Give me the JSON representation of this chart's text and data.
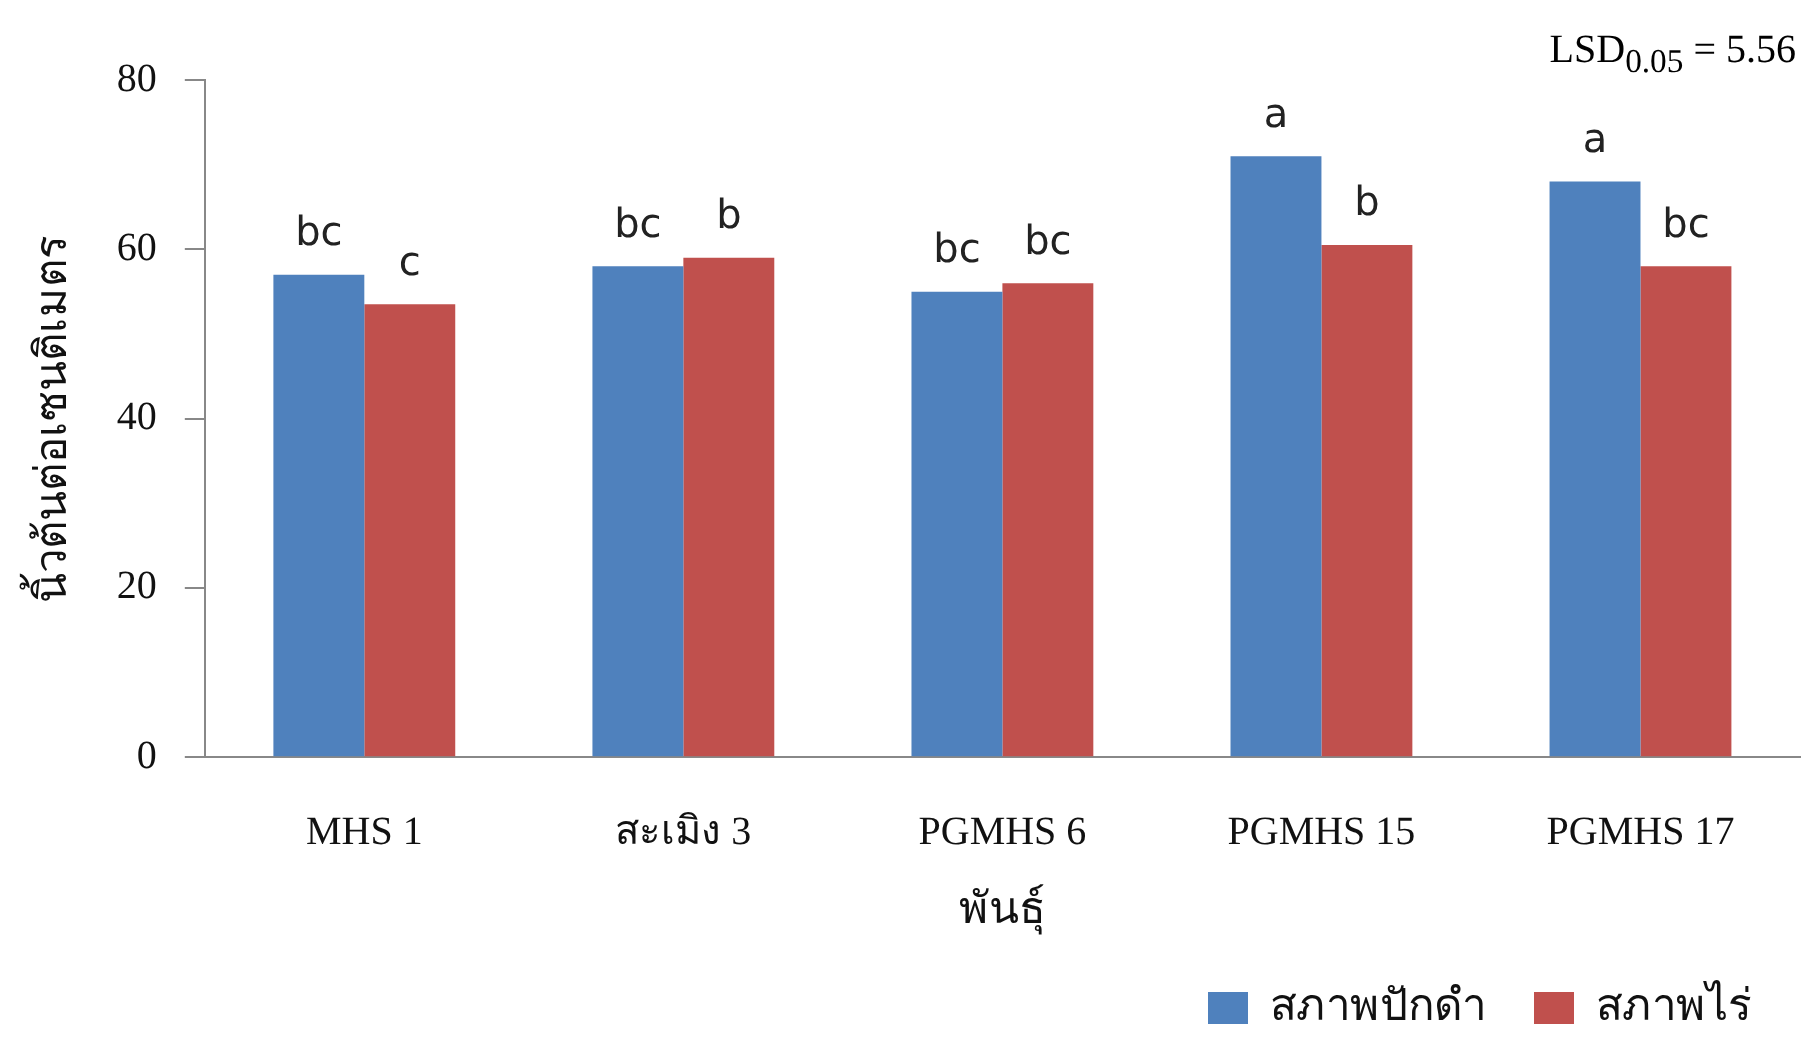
{
  "chart_data": {
    "type": "bar",
    "xlabel": "พันธุ์",
    "ylabel": "นิ้วต้นต่อเซนติเมตร",
    "categories": [
      "MHS 1",
      "สะเมิง 3",
      "PGMHS 6",
      "PGMHS 15",
      "PGMHS 17"
    ],
    "series": [
      {
        "name": "สภาพปักดำ",
        "color": "#4f81bd",
        "values": [
          57,
          58,
          55,
          71,
          68
        ],
        "value_labels": [
          "bc",
          "bc",
          "bc",
          "a",
          "a"
        ]
      },
      {
        "name": "สภาพไร่",
        "color": "#c0504d",
        "values": [
          53.5,
          59,
          56,
          60.5,
          58
        ],
        "value_labels": [
          "c",
          "b",
          "bc",
          "b",
          "bc"
        ]
      }
    ],
    "ylim": [
      0,
      80
    ],
    "yticks": [
      0,
      20,
      40,
      60,
      80
    ],
    "grid": false,
    "legend": "bottom right",
    "annotations": [
      "LSD$_{0.05}$ = 5.56"
    ]
  }
}
